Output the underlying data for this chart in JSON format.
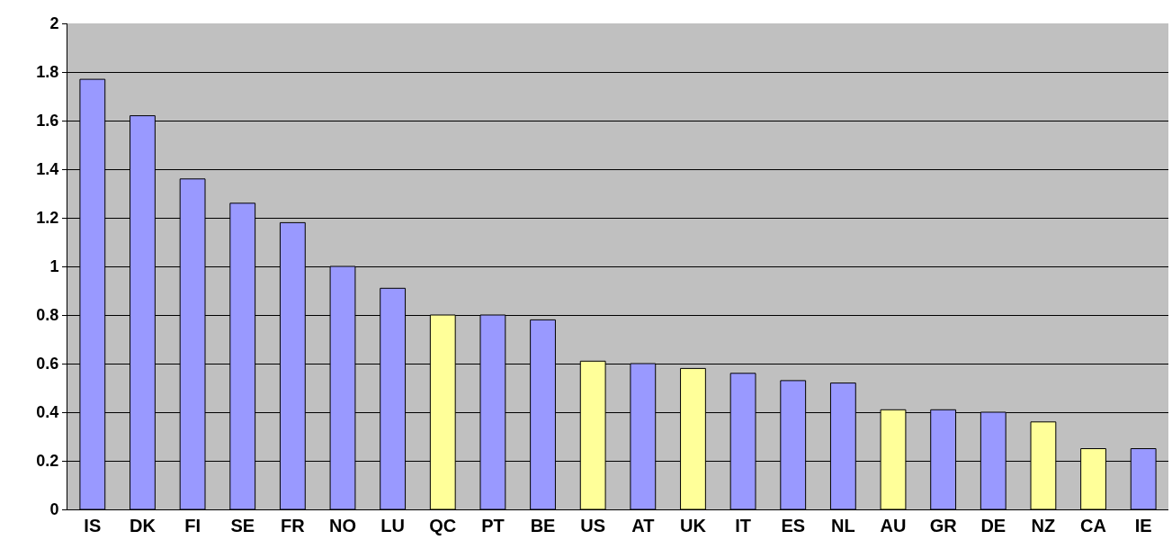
{
  "chart_data": {
    "type": "bar",
    "categories": [
      "IS",
      "DK",
      "FI",
      "SE",
      "FR",
      "NO",
      "LU",
      "QC",
      "PT",
      "BE",
      "US",
      "AT",
      "UK",
      "IT",
      "ES",
      "NL",
      "AU",
      "GR",
      "DE",
      "NZ",
      "CA",
      "IE"
    ],
    "values": [
      1.77,
      1.62,
      1.36,
      1.26,
      1.18,
      1.0,
      0.91,
      0.8,
      0.8,
      0.78,
      0.61,
      0.6,
      0.58,
      0.56,
      0.53,
      0.52,
      0.41,
      0.41,
      0.4,
      0.36,
      0.25,
      0.25
    ],
    "colors": [
      "#9999ff",
      "#9999ff",
      "#9999ff",
      "#9999ff",
      "#9999ff",
      "#9999ff",
      "#9999ff",
      "#ffff99",
      "#9999ff",
      "#9999ff",
      "#ffff99",
      "#9999ff",
      "#ffff99",
      "#9999ff",
      "#9999ff",
      "#9999ff",
      "#ffff99",
      "#9999ff",
      "#9999ff",
      "#ffff99",
      "#ffff99",
      "#9999ff"
    ],
    "ylim": [
      0,
      2
    ],
    "yticks": [
      0,
      0.2,
      0.4,
      0.6,
      0.8,
      1,
      1.2,
      1.4,
      1.6,
      1.8,
      2
    ],
    "grid": "y",
    "legend": false
  }
}
